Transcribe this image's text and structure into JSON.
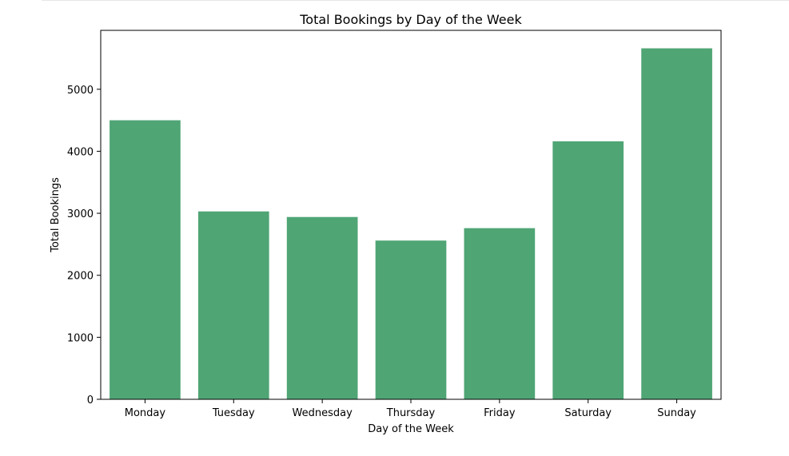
{
  "chart_data": {
    "type": "bar",
    "title": "Total Bookings by Day of the Week",
    "xlabel": "Day of the Week",
    "ylabel": "Total Bookings",
    "categories": [
      "Monday",
      "Tuesday",
      "Wednesday",
      "Thursday",
      "Friday",
      "Saturday",
      "Sunday"
    ],
    "values": [
      4500,
      3030,
      2940,
      2560,
      2760,
      4160,
      5660
    ],
    "ylim": [
      0,
      5950
    ],
    "yticks": [
      0,
      1000,
      2000,
      3000,
      4000,
      5000
    ],
    "grid": false,
    "legend": "none",
    "bar_color": "#4fa574"
  }
}
